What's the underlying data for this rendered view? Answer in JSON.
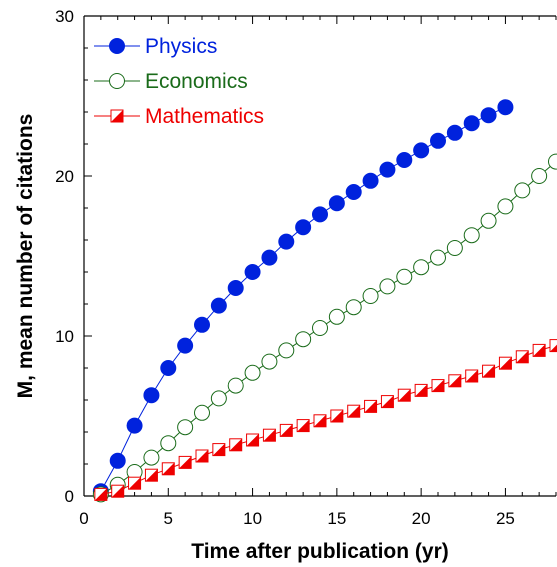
{
  "chart_data": {
    "type": "scatter",
    "title": "",
    "xlabel": "Time after publication (yr)",
    "ylabel": "M, mean number of citations",
    "xlim": [
      0,
      28
    ],
    "ylim": [
      0,
      30
    ],
    "xticks": [
      0,
      5,
      10,
      15,
      20,
      25
    ],
    "yticks": [
      0,
      10,
      20,
      30
    ],
    "grid": false,
    "legend_position": "top-left",
    "series": [
      {
        "name": "Physics",
        "color": "#0022dd",
        "marker": "filled-circle",
        "line": true,
        "x": [
          1,
          2,
          3,
          4,
          5,
          6,
          7,
          8,
          9,
          10,
          11,
          12,
          13,
          14,
          15,
          16,
          17,
          18,
          19,
          20,
          21,
          22,
          23,
          24,
          25
        ],
        "y": [
          0.3,
          2.2,
          4.4,
          6.3,
          8.0,
          9.4,
          10.7,
          11.9,
          13.0,
          14.0,
          14.9,
          15.9,
          16.8,
          17.6,
          18.3,
          19.0,
          19.7,
          20.4,
          21.0,
          21.6,
          22.2,
          22.7,
          23.3,
          23.8,
          24.3
        ]
      },
      {
        "name": "Economics",
        "color": "#1a6b1a",
        "marker": "open-circle",
        "line": true,
        "x": [
          1,
          2,
          3,
          4,
          5,
          6,
          7,
          8,
          9,
          10,
          11,
          12,
          13,
          14,
          15,
          16,
          17,
          18,
          19,
          20,
          21,
          22,
          23,
          24,
          25,
          26,
          27,
          28
        ],
        "y": [
          0.1,
          0.7,
          1.5,
          2.4,
          3.3,
          4.3,
          5.2,
          6.1,
          6.9,
          7.7,
          8.4,
          9.1,
          9.8,
          10.5,
          11.2,
          11.8,
          12.5,
          13.1,
          13.7,
          14.3,
          14.9,
          15.5,
          16.3,
          17.2,
          18.1,
          19.1,
          20.0,
          20.9
        ]
      },
      {
        "name": "Mathematics",
        "color": "#ee0000",
        "marker": "half-square",
        "line": true,
        "x": [
          1,
          2,
          3,
          4,
          5,
          6,
          7,
          8,
          9,
          10,
          11,
          12,
          13,
          14,
          15,
          16,
          17,
          18,
          19,
          20,
          21,
          22,
          23,
          24,
          25,
          26,
          27,
          28
        ],
        "y": [
          0.1,
          0.3,
          0.8,
          1.3,
          1.7,
          2.1,
          2.5,
          2.9,
          3.2,
          3.5,
          3.8,
          4.1,
          4.4,
          4.7,
          5.0,
          5.3,
          5.6,
          5.9,
          6.3,
          6.6,
          6.9,
          7.2,
          7.5,
          7.8,
          8.3,
          8.7,
          9.1,
          9.4
        ]
      }
    ]
  }
}
